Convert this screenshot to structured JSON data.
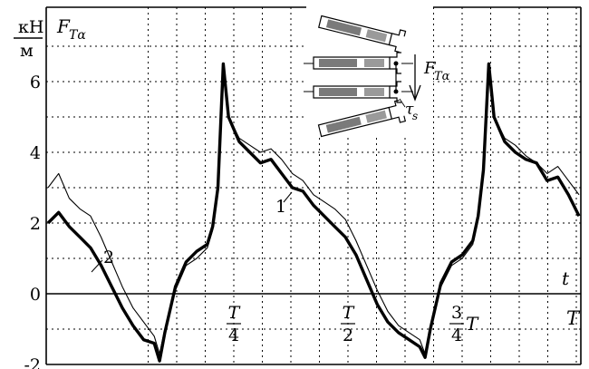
{
  "chart_data": {
    "type": "line",
    "y_unit": {
      "numerator": "кН",
      "denominator": "м"
    },
    "y_label": {
      "main": "F",
      "sub": "Tα"
    },
    "x_label": "t",
    "ylim": [
      -2,
      7
    ],
    "xlim": [
      0,
      1
    ],
    "grid": true,
    "grid_style": "dotted",
    "y_ticks": [
      "6",
      "4",
      "2",
      "0",
      "-2"
    ],
    "y_tick_values": [
      6,
      4,
      2,
      0,
      -2
    ],
    "x_ticks": [
      {
        "value": 0.25,
        "num": "T",
        "den": "4",
        "prefix": ""
      },
      {
        "value": 0.5,
        "num": "T",
        "den": "2",
        "prefix": ""
      },
      {
        "value": 0.75,
        "num": "3",
        "den": "4",
        "prefix": "T"
      },
      {
        "value": 1.0,
        "num": "",
        "den": "",
        "prefix": "T"
      }
    ],
    "series": [
      {
        "name": "1",
        "style": "thick",
        "x": [
          0.0,
          0.02,
          0.04,
          0.06,
          0.08,
          0.1,
          0.12,
          0.14,
          0.16,
          0.18,
          0.2,
          0.21,
          0.22,
          0.24,
          0.26,
          0.28,
          0.3,
          0.31,
          0.32,
          0.33,
          0.34,
          0.36,
          0.38,
          0.4,
          0.42,
          0.44,
          0.46,
          0.48,
          0.5,
          0.52,
          0.54,
          0.56,
          0.58,
          0.6,
          0.62,
          0.64,
          0.66,
          0.68,
          0.7,
          0.71,
          0.72,
          0.74,
          0.76,
          0.78,
          0.8,
          0.81,
          0.82,
          0.83,
          0.84,
          0.86,
          0.88,
          0.9,
          0.92,
          0.94,
          0.96,
          0.98,
          1.0
        ],
        "y": [
          2.0,
          2.3,
          1.9,
          1.6,
          1.3,
          0.8,
          0.2,
          -0.4,
          -0.9,
          -1.3,
          -1.4,
          -1.9,
          -1.1,
          0.2,
          0.9,
          1.2,
          1.4,
          1.9,
          3.0,
          6.5,
          5.0,
          4.3,
          4.0,
          3.7,
          3.8,
          3.4,
          3.0,
          2.9,
          2.5,
          2.2,
          1.9,
          1.6,
          1.1,
          0.4,
          -0.3,
          -0.8,
          -1.1,
          -1.3,
          -1.5,
          -1.8,
          -1.0,
          0.3,
          0.9,
          1.1,
          1.5,
          2.2,
          3.5,
          6.5,
          5.0,
          4.3,
          4.0,
          3.8,
          3.7,
          3.2,
          3.3,
          2.8,
          2.2
        ]
      },
      {
        "name": "2",
        "style": "thin",
        "x": [
          0.0,
          0.02,
          0.04,
          0.06,
          0.08,
          0.1,
          0.12,
          0.14,
          0.16,
          0.18,
          0.2,
          0.21,
          0.22,
          0.24,
          0.26,
          0.28,
          0.3,
          0.31,
          0.32,
          0.33,
          0.34,
          0.36,
          0.38,
          0.4,
          0.42,
          0.44,
          0.46,
          0.48,
          0.5,
          0.52,
          0.54,
          0.56,
          0.58,
          0.6,
          0.62,
          0.64,
          0.66,
          0.68,
          0.7,
          0.71,
          0.72,
          0.74,
          0.76,
          0.78,
          0.8,
          0.81,
          0.82,
          0.83,
          0.84,
          0.86,
          0.88,
          0.9,
          0.92,
          0.94,
          0.96,
          0.98,
          1.0
        ],
        "y": [
          3.0,
          3.4,
          2.7,
          2.4,
          2.2,
          1.6,
          0.9,
          0.2,
          -0.4,
          -0.8,
          -1.2,
          -1.7,
          -1.0,
          0.1,
          0.8,
          1.0,
          1.3,
          1.8,
          3.0,
          6.5,
          5.0,
          4.4,
          4.2,
          4.0,
          4.1,
          3.8,
          3.4,
          3.2,
          2.8,
          2.6,
          2.4,
          2.1,
          1.5,
          0.8,
          0.1,
          -0.5,
          -0.9,
          -1.1,
          -1.3,
          -1.7,
          -0.9,
          0.2,
          0.8,
          1.0,
          1.4,
          2.1,
          3.4,
          6.5,
          5.0,
          4.4,
          4.2,
          3.9,
          3.7,
          3.4,
          3.6,
          3.2,
          2.8
        ]
      }
    ],
    "inset": {
      "force_label_main": "F",
      "force_label_sub": "Tα",
      "tau_label_main": "τ",
      "tau_label_sub": "s"
    }
  }
}
